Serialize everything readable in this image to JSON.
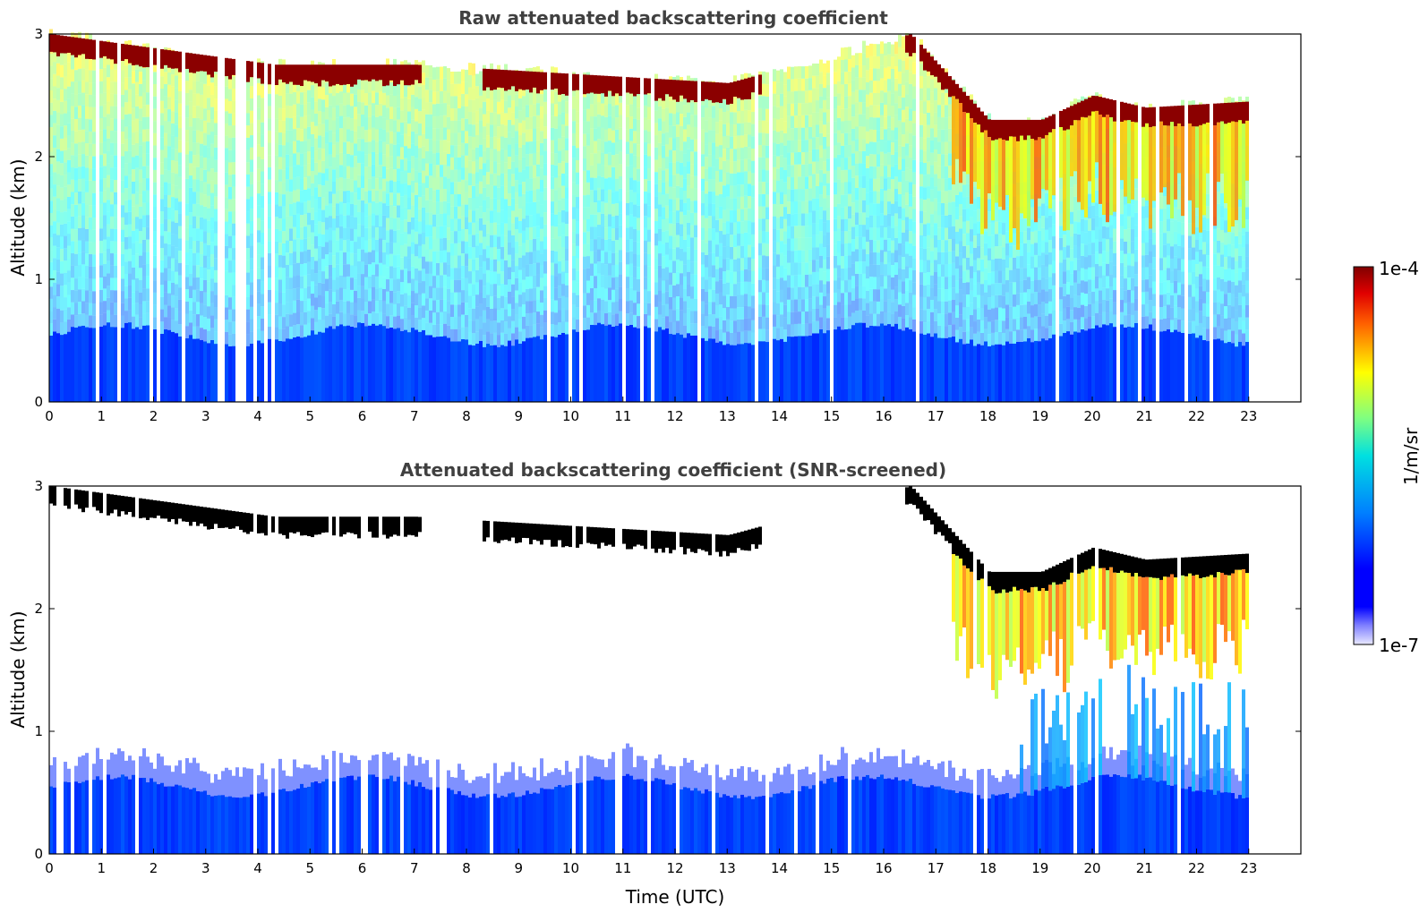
{
  "colors": {
    "jet_low": "#0000ff",
    "jet_high": "#800000",
    "cloud_black": "#000000",
    "title_gray": "#404040"
  },
  "chart_data": [
    {
      "type": "heatmap",
      "title": "Raw attenuated backscattering coefficient",
      "xlabel": "",
      "ylabel": "Altitude (km)",
      "xlim": [
        0,
        24
      ],
      "ylim": [
        0,
        3
      ],
      "xticks": [
        "0",
        "1",
        "2",
        "3",
        "4",
        "5",
        "6",
        "7",
        "8",
        "9",
        "10",
        "11",
        "12",
        "13",
        "14",
        "15",
        "16",
        "17",
        "18",
        "19",
        "20",
        "21",
        "22",
        "23"
      ],
      "yticks": [
        "0",
        "1",
        "2",
        "3"
      ],
      "data_extent_hours": [
        0,
        23
      ],
      "cloud_layer_top_km": [
        [
          0,
          3.0
        ],
        [
          4.3,
          2.75
        ],
        [
          7,
          2.75
        ],
        [
          9,
          2.7
        ],
        [
          13,
          2.6
        ],
        [
          16.5,
          3.0
        ],
        [
          18,
          2.3
        ],
        [
          19,
          2.3
        ],
        [
          20,
          2.5
        ],
        [
          21,
          2.4
        ],
        [
          23,
          2.45
        ]
      ],
      "boundary_layer_top_km": 0.55
    },
    {
      "type": "heatmap",
      "title": "Attenuated backscattering coefficient (SNR-screened)",
      "xlabel": "Time (UTC)",
      "ylabel": "Altitude (km)",
      "xlim": [
        0,
        24
      ],
      "ylim": [
        0,
        3
      ],
      "xticks": [
        "0",
        "1",
        "2",
        "3",
        "4",
        "5",
        "6",
        "7",
        "8",
        "9",
        "10",
        "11",
        "12",
        "13",
        "14",
        "15",
        "16",
        "17",
        "18",
        "19",
        "20",
        "21",
        "22",
        "23"
      ],
      "yticks": [
        "0",
        "1",
        "2",
        "3"
      ],
      "data_extent_hours": [
        0,
        23
      ],
      "boundary_layer_top_km": 0.55
    }
  ],
  "colorbar": {
    "label": "1/m/sr",
    "min_label": "1e-7",
    "max_label": "1e-4",
    "scale": "log",
    "range": [
      1e-07,
      0.0001
    ]
  }
}
